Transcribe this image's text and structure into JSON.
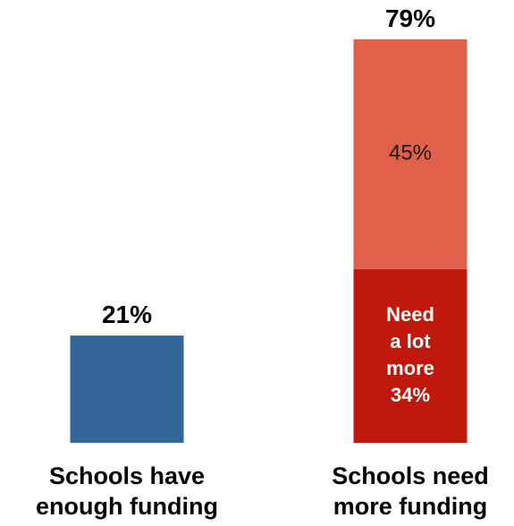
{
  "chart_data": {
    "type": "bar",
    "stacked": true,
    "title": "",
    "xlabel": "",
    "ylabel": "",
    "ylim": [
      0,
      80
    ],
    "grid": false,
    "legend": "none",
    "categories": [
      {
        "id": "enough",
        "label_lines": [
          "Schools have",
          "enough funding"
        ]
      },
      {
        "id": "more",
        "label_lines": [
          "Schools need",
          "more funding"
        ]
      }
    ],
    "totals": [
      {
        "category": "enough",
        "value": 21,
        "label": "21%"
      },
      {
        "category": "more",
        "value": 79,
        "label": "79%"
      }
    ],
    "segments": [
      {
        "category": "enough",
        "value": 21,
        "color": "#336699",
        "label_lines": [],
        "label_style": "none"
      },
      {
        "category": "more",
        "value": 34,
        "color": "#c0180c",
        "label_lines": [
          "Need",
          "a lot",
          "more",
          "34%"
        ],
        "label_style": "bold"
      },
      {
        "category": "more",
        "value": 45,
        "color": "#e0604a",
        "label_lines": [
          "45%"
        ],
        "label_style": "plain"
      }
    ]
  }
}
